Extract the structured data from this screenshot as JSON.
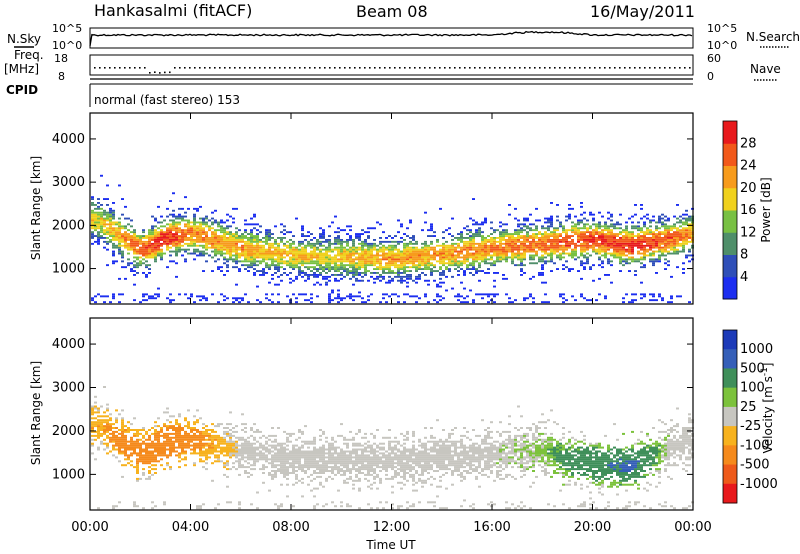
{
  "header": {
    "station": "Hankasalmi (fitACF)",
    "beam": "Beam 08",
    "date": "16/May/2011"
  },
  "sky_panel": {
    "left_label": "N.Sky",
    "right_label": "N.Search",
    "left_ticks": [
      "10^5",
      "10^0"
    ],
    "right_ticks": [
      "10^5",
      "10^0"
    ]
  },
  "freq_panel": {
    "left_label_1": "Freq.",
    "left_label_2": "[MHz]",
    "right_label": "Nave",
    "left_ticks": [
      "18",
      "8"
    ],
    "right_ticks": [
      "60",
      "0"
    ]
  },
  "cpid_panel": {
    "label": "CPID",
    "mode": "normal (fast stereo) 153"
  },
  "x_ticks": [
    "00:00",
    "04:00",
    "08:00",
    "12:00",
    "16:00",
    "20:00",
    "00:00"
  ],
  "x_label": "Time UT",
  "y_ticks": [
    "1000",
    "2000",
    "3000",
    "4000"
  ],
  "y_label": "Slant Range [km]",
  "power_colorbar": {
    "label": "Power [dB]",
    "ticks": [
      "4",
      "8",
      "12",
      "16",
      "20",
      "24",
      "28"
    ],
    "colors": [
      "#1c2ef0",
      "#2f4fb8",
      "#4f8f6a",
      "#78c043",
      "#f0d11d",
      "#f79b1c",
      "#f2591a",
      "#e8191c"
    ]
  },
  "velocity_colorbar": {
    "label": "Velocity [m s^-1]",
    "ticks": [
      "1000",
      "500",
      "100",
      "25",
      "-25",
      "-100",
      "-500",
      "-1000"
    ],
    "colors": [
      "#1c3ab8",
      "#355fb8",
      "#3f8f5a",
      "#7cc23c",
      "#c7c6c0",
      "#f7b21e",
      "#f58a1c",
      "#ee5a1a",
      "#e8191c"
    ]
  },
  "chart_data": {
    "type": "heatmap",
    "x_range_hours": [
      0,
      24
    ],
    "ylim": [
      180,
      4600
    ],
    "power_band": {
      "description_hours": [
        0.3,
        2,
        3,
        4,
        6,
        8,
        9,
        10,
        12,
        14,
        16,
        18,
        20,
        21.5,
        23,
        24
      ],
      "center_km": [
        2100,
        1400,
        1700,
        1800,
        1450,
        1300,
        1250,
        1250,
        1200,
        1300,
        1450,
        1550,
        1650,
        1500,
        1650,
        1800
      ],
      "peak_power_db": [
        18,
        26,
        30,
        24,
        22,
        20,
        18,
        20,
        22,
        22,
        24,
        26,
        28,
        30,
        26,
        22
      ]
    },
    "velocity_band": {
      "description_hours": [
        0.3,
        2,
        3,
        4,
        6,
        8,
        9,
        10,
        12,
        14,
        16,
        18,
        19,
        21.5,
        23,
        24
      ],
      "center_km": [
        2100,
        1450,
        1700,
        1800,
        1500,
        1350,
        1300,
        1300,
        1300,
        1350,
        1450,
        1550,
        1300,
        1150,
        1600,
        1800
      ],
      "velocity_ms": [
        -100,
        -300,
        -400,
        -200,
        0,
        0,
        0,
        0,
        0,
        0,
        0,
        50,
        150,
        300,
        0,
        0
      ]
    }
  }
}
